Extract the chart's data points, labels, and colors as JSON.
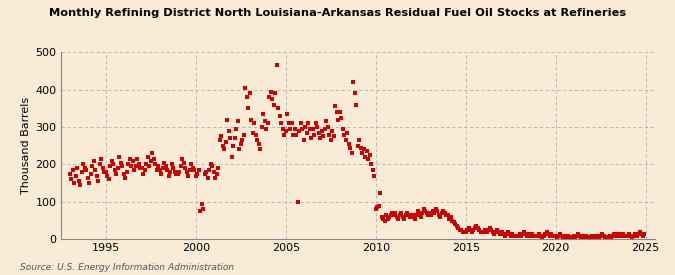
{
  "title": "Monthly Refining District North Louisiana-Arkansas Residual Fuel Oil Stocks at Refineries",
  "ylabel": "Thousand Barrels",
  "source": "Source: U.S. Energy Information Administration",
  "background_color": "#faebd7",
  "plot_bg_color": "#faebd7",
  "dot_color": "#cc0000",
  "xlim": [
    1992.5,
    2025.5
  ],
  "ylim": [
    0,
    500
  ],
  "yticks": [
    0,
    100,
    200,
    300,
    400,
    500
  ],
  "xticks": [
    1995,
    2000,
    2005,
    2010,
    2015,
    2020,
    2025
  ],
  "data": [
    [
      1993.0,
      175
    ],
    [
      1993.083,
      160
    ],
    [
      1993.167,
      185
    ],
    [
      1993.25,
      150
    ],
    [
      1993.333,
      170
    ],
    [
      1993.417,
      190
    ],
    [
      1993.5,
      155
    ],
    [
      1993.583,
      145
    ],
    [
      1993.667,
      180
    ],
    [
      1993.75,
      200
    ],
    [
      1993.833,
      190
    ],
    [
      1993.917,
      185
    ],
    [
      1994.0,
      165
    ],
    [
      1994.083,
      150
    ],
    [
      1994.167,
      175
    ],
    [
      1994.25,
      195
    ],
    [
      1994.333,
      210
    ],
    [
      1994.417,
      185
    ],
    [
      1994.5,
      170
    ],
    [
      1994.583,
      155
    ],
    [
      1994.667,
      200
    ],
    [
      1994.75,
      215
    ],
    [
      1994.833,
      190
    ],
    [
      1994.917,
      180
    ],
    [
      1995.0,
      180
    ],
    [
      1995.083,
      170
    ],
    [
      1995.167,
      160
    ],
    [
      1995.25,
      195
    ],
    [
      1995.333,
      210
    ],
    [
      1995.417,
      200
    ],
    [
      1995.5,
      185
    ],
    [
      1995.583,
      175
    ],
    [
      1995.667,
      190
    ],
    [
      1995.75,
      220
    ],
    [
      1995.833,
      205
    ],
    [
      1995.917,
      195
    ],
    [
      1996.0,
      175
    ],
    [
      1996.083,
      165
    ],
    [
      1996.167,
      180
    ],
    [
      1996.25,
      200
    ],
    [
      1996.333,
      215
    ],
    [
      1996.417,
      195
    ],
    [
      1996.5,
      210
    ],
    [
      1996.583,
      185
    ],
    [
      1996.667,
      195
    ],
    [
      1996.75,
      215
    ],
    [
      1996.833,
      200
    ],
    [
      1996.917,
      190
    ],
    [
      1997.0,
      190
    ],
    [
      1997.083,
      175
    ],
    [
      1997.167,
      185
    ],
    [
      1997.25,
      200
    ],
    [
      1997.333,
      220
    ],
    [
      1997.417,
      195
    ],
    [
      1997.5,
      210
    ],
    [
      1997.583,
      230
    ],
    [
      1997.667,
      215
    ],
    [
      1997.75,
      200
    ],
    [
      1997.833,
      185
    ],
    [
      1997.917,
      195
    ],
    [
      1998.0,
      185
    ],
    [
      1998.083,
      175
    ],
    [
      1998.167,
      190
    ],
    [
      1998.25,
      205
    ],
    [
      1998.333,
      195
    ],
    [
      1998.417,
      185
    ],
    [
      1998.5,
      170
    ],
    [
      1998.583,
      180
    ],
    [
      1998.667,
      200
    ],
    [
      1998.75,
      190
    ],
    [
      1998.833,
      180
    ],
    [
      1998.917,
      175
    ],
    [
      1999.0,
      175
    ],
    [
      1999.083,
      180
    ],
    [
      1999.167,
      195
    ],
    [
      1999.25,
      215
    ],
    [
      1999.333,
      205
    ],
    [
      1999.417,
      190
    ],
    [
      1999.5,
      180
    ],
    [
      1999.583,
      170
    ],
    [
      1999.667,
      185
    ],
    [
      1999.75,
      200
    ],
    [
      1999.833,
      190
    ],
    [
      1999.917,
      185
    ],
    [
      2000.0,
      170
    ],
    [
      2000.083,
      175
    ],
    [
      2000.167,
      185
    ],
    [
      2000.25,
      75
    ],
    [
      2000.333,
      95
    ],
    [
      2000.417,
      80
    ],
    [
      2000.5,
      175
    ],
    [
      2000.583,
      180
    ],
    [
      2000.667,
      165
    ],
    [
      2000.75,
      185
    ],
    [
      2000.833,
      200
    ],
    [
      2000.917,
      195
    ],
    [
      2001.0,
      180
    ],
    [
      2001.083,
      165
    ],
    [
      2001.167,
      175
    ],
    [
      2001.25,
      190
    ],
    [
      2001.333,
      265
    ],
    [
      2001.417,
      275
    ],
    [
      2001.5,
      250
    ],
    [
      2001.583,
      240
    ],
    [
      2001.667,
      260
    ],
    [
      2001.75,
      320
    ],
    [
      2001.833,
      290
    ],
    [
      2001.917,
      270
    ],
    [
      2002.0,
      220
    ],
    [
      2002.083,
      250
    ],
    [
      2002.167,
      270
    ],
    [
      2002.25,
      295
    ],
    [
      2002.333,
      315
    ],
    [
      2002.417,
      240
    ],
    [
      2002.5,
      255
    ],
    [
      2002.583,
      265
    ],
    [
      2002.667,
      280
    ],
    [
      2002.75,
      405
    ],
    [
      2002.833,
      380
    ],
    [
      2002.917,
      350
    ],
    [
      2003.0,
      390
    ],
    [
      2003.083,
      320
    ],
    [
      2003.167,
      285
    ],
    [
      2003.25,
      310
    ],
    [
      2003.333,
      280
    ],
    [
      2003.417,
      265
    ],
    [
      2003.5,
      255
    ],
    [
      2003.583,
      240
    ],
    [
      2003.667,
      300
    ],
    [
      2003.75,
      335
    ],
    [
      2003.833,
      315
    ],
    [
      2003.917,
      295
    ],
    [
      2004.0,
      310
    ],
    [
      2004.083,
      380
    ],
    [
      2004.167,
      395
    ],
    [
      2004.25,
      375
    ],
    [
      2004.333,
      360
    ],
    [
      2004.417,
      390
    ],
    [
      2004.5,
      465
    ],
    [
      2004.583,
      350
    ],
    [
      2004.667,
      330
    ],
    [
      2004.75,
      310
    ],
    [
      2004.833,
      295
    ],
    [
      2004.917,
      280
    ],
    [
      2005.0,
      290
    ],
    [
      2005.083,
      335
    ],
    [
      2005.167,
      310
    ],
    [
      2005.25,
      295
    ],
    [
      2005.333,
      310
    ],
    [
      2005.417,
      280
    ],
    [
      2005.5,
      295
    ],
    [
      2005.583,
      280
    ],
    [
      2005.667,
      100
    ],
    [
      2005.75,
      290
    ],
    [
      2005.833,
      310
    ],
    [
      2005.917,
      295
    ],
    [
      2006.0,
      265
    ],
    [
      2006.083,
      300
    ],
    [
      2006.167,
      285
    ],
    [
      2006.25,
      310
    ],
    [
      2006.333,
      295
    ],
    [
      2006.417,
      270
    ],
    [
      2006.5,
      295
    ],
    [
      2006.583,
      280
    ],
    [
      2006.667,
      310
    ],
    [
      2006.75,
      300
    ],
    [
      2006.833,
      285
    ],
    [
      2006.917,
      270
    ],
    [
      2007.0,
      290
    ],
    [
      2007.083,
      275
    ],
    [
      2007.167,
      295
    ],
    [
      2007.25,
      315
    ],
    [
      2007.333,
      300
    ],
    [
      2007.417,
      280
    ],
    [
      2007.5,
      265
    ],
    [
      2007.583,
      290
    ],
    [
      2007.667,
      275
    ],
    [
      2007.75,
      355
    ],
    [
      2007.833,
      340
    ],
    [
      2007.917,
      320
    ],
    [
      2008.0,
      340
    ],
    [
      2008.083,
      325
    ],
    [
      2008.167,
      295
    ],
    [
      2008.25,
      280
    ],
    [
      2008.333,
      265
    ],
    [
      2008.417,
      285
    ],
    [
      2008.5,
      255
    ],
    [
      2008.583,
      245
    ],
    [
      2008.667,
      230
    ],
    [
      2008.75,
      420
    ],
    [
      2008.833,
      390
    ],
    [
      2008.917,
      360
    ],
    [
      2009.0,
      250
    ],
    [
      2009.083,
      265
    ],
    [
      2009.167,
      245
    ],
    [
      2009.25,
      230
    ],
    [
      2009.333,
      240
    ],
    [
      2009.417,
      220
    ],
    [
      2009.5,
      235
    ],
    [
      2009.583,
      215
    ],
    [
      2009.667,
      225
    ],
    [
      2009.75,
      200
    ],
    [
      2009.833,
      185
    ],
    [
      2009.917,
      170
    ],
    [
      2010.0,
      80
    ],
    [
      2010.083,
      85
    ],
    [
      2010.167,
      90
    ],
    [
      2010.25,
      125
    ],
    [
      2010.333,
      60
    ],
    [
      2010.417,
      55
    ],
    [
      2010.5,
      50
    ],
    [
      2010.583,
      65
    ],
    [
      2010.667,
      55
    ],
    [
      2010.75,
      60
    ],
    [
      2010.833,
      65
    ],
    [
      2010.917,
      70
    ],
    [
      2011.0,
      65
    ],
    [
      2011.083,
      70
    ],
    [
      2011.167,
      60
    ],
    [
      2011.25,
      55
    ],
    [
      2011.333,
      65
    ],
    [
      2011.417,
      70
    ],
    [
      2011.5,
      60
    ],
    [
      2011.583,
      55
    ],
    [
      2011.667,
      65
    ],
    [
      2011.75,
      70
    ],
    [
      2011.833,
      65
    ],
    [
      2011.917,
      60
    ],
    [
      2012.0,
      65
    ],
    [
      2012.083,
      60
    ],
    [
      2012.167,
      55
    ],
    [
      2012.25,
      65
    ],
    [
      2012.333,
      75
    ],
    [
      2012.417,
      65
    ],
    [
      2012.5,
      60
    ],
    [
      2012.583,
      70
    ],
    [
      2012.667,
      80
    ],
    [
      2012.75,
      75
    ],
    [
      2012.833,
      70
    ],
    [
      2012.917,
      65
    ],
    [
      2013.0,
      70
    ],
    [
      2013.083,
      65
    ],
    [
      2013.167,
      75
    ],
    [
      2013.25,
      70
    ],
    [
      2013.333,
      80
    ],
    [
      2013.417,
      75
    ],
    [
      2013.5,
      65
    ],
    [
      2013.583,
      60
    ],
    [
      2013.667,
      70
    ],
    [
      2013.75,
      75
    ],
    [
      2013.833,
      70
    ],
    [
      2013.917,
      65
    ],
    [
      2014.0,
      65
    ],
    [
      2014.083,
      55
    ],
    [
      2014.167,
      60
    ],
    [
      2014.25,
      50
    ],
    [
      2014.333,
      45
    ],
    [
      2014.417,
      40
    ],
    [
      2014.5,
      35
    ],
    [
      2014.583,
      30
    ],
    [
      2014.667,
      25
    ],
    [
      2014.75,
      25
    ],
    [
      2014.833,
      20
    ],
    [
      2014.917,
      20
    ],
    [
      2015.0,
      20
    ],
    [
      2015.083,
      25
    ],
    [
      2015.167,
      30
    ],
    [
      2015.25,
      25
    ],
    [
      2015.333,
      20
    ],
    [
      2015.417,
      25
    ],
    [
      2015.5,
      30
    ],
    [
      2015.583,
      35
    ],
    [
      2015.667,
      30
    ],
    [
      2015.75,
      25
    ],
    [
      2015.833,
      20
    ],
    [
      2015.917,
      20
    ],
    [
      2016.0,
      20
    ],
    [
      2016.083,
      25
    ],
    [
      2016.167,
      20
    ],
    [
      2016.25,
      25
    ],
    [
      2016.333,
      30
    ],
    [
      2016.417,
      25
    ],
    [
      2016.5,
      20
    ],
    [
      2016.583,
      15
    ],
    [
      2016.667,
      20
    ],
    [
      2016.75,
      25
    ],
    [
      2016.833,
      20
    ],
    [
      2016.917,
      15
    ],
    [
      2017.0,
      20
    ],
    [
      2017.083,
      15
    ],
    [
      2017.167,
      10
    ],
    [
      2017.25,
      15
    ],
    [
      2017.333,
      20
    ],
    [
      2017.417,
      15
    ],
    [
      2017.5,
      10
    ],
    [
      2017.583,
      15
    ],
    [
      2017.667,
      10
    ],
    [
      2017.75,
      10
    ],
    [
      2017.833,
      10
    ],
    [
      2017.917,
      10
    ],
    [
      2018.0,
      15
    ],
    [
      2018.083,
      10
    ],
    [
      2018.167,
      15
    ],
    [
      2018.25,
      20
    ],
    [
      2018.333,
      15
    ],
    [
      2018.417,
      10
    ],
    [
      2018.5,
      15
    ],
    [
      2018.583,
      10
    ],
    [
      2018.667,
      15
    ],
    [
      2018.75,
      10
    ],
    [
      2018.833,
      10
    ],
    [
      2018.917,
      10
    ],
    [
      2019.0,
      10
    ],
    [
      2019.083,
      15
    ],
    [
      2019.167,
      10
    ],
    [
      2019.25,
      5
    ],
    [
      2019.333,
      10
    ],
    [
      2019.417,
      15
    ],
    [
      2019.5,
      20
    ],
    [
      2019.583,
      15
    ],
    [
      2019.667,
      10
    ],
    [
      2019.75,
      15
    ],
    [
      2019.833,
      10
    ],
    [
      2019.917,
      10
    ],
    [
      2020.0,
      10
    ],
    [
      2020.083,
      5
    ],
    [
      2020.167,
      10
    ],
    [
      2020.25,
      15
    ],
    [
      2020.333,
      10
    ],
    [
      2020.417,
      5
    ],
    [
      2020.5,
      10
    ],
    [
      2020.583,
      5
    ],
    [
      2020.667,
      10
    ],
    [
      2020.75,
      5
    ],
    [
      2020.833,
      5
    ],
    [
      2020.917,
      5
    ],
    [
      2021.0,
      10
    ],
    [
      2021.083,
      5
    ],
    [
      2021.167,
      10
    ],
    [
      2021.25,
      15
    ],
    [
      2021.333,
      10
    ],
    [
      2021.417,
      5
    ],
    [
      2021.5,
      10
    ],
    [
      2021.583,
      5
    ],
    [
      2021.667,
      10
    ],
    [
      2021.75,
      5
    ],
    [
      2021.833,
      5
    ],
    [
      2021.917,
      5
    ],
    [
      2022.0,
      10
    ],
    [
      2022.083,
      5
    ],
    [
      2022.167,
      10
    ],
    [
      2022.25,
      5
    ],
    [
      2022.333,
      10
    ],
    [
      2022.417,
      5
    ],
    [
      2022.5,
      10
    ],
    [
      2022.583,
      15
    ],
    [
      2022.667,
      10
    ],
    [
      2022.75,
      5
    ],
    [
      2022.833,
      5
    ],
    [
      2022.917,
      5
    ],
    [
      2023.0,
      10
    ],
    [
      2023.083,
      5
    ],
    [
      2023.167,
      10
    ],
    [
      2023.25,
      15
    ],
    [
      2023.333,
      10
    ],
    [
      2023.417,
      15
    ],
    [
      2023.5,
      10
    ],
    [
      2023.583,
      15
    ],
    [
      2023.667,
      10
    ],
    [
      2023.75,
      15
    ],
    [
      2023.833,
      10
    ],
    [
      2023.917,
      10
    ],
    [
      2024.0,
      10
    ],
    [
      2024.083,
      15
    ],
    [
      2024.167,
      10
    ],
    [
      2024.25,
      5
    ],
    [
      2024.333,
      10
    ],
    [
      2024.417,
      15
    ],
    [
      2024.5,
      10
    ],
    [
      2024.583,
      15
    ],
    [
      2024.667,
      20
    ],
    [
      2024.75,
      15
    ],
    [
      2024.833,
      10
    ],
    [
      2024.917,
      15
    ]
  ]
}
